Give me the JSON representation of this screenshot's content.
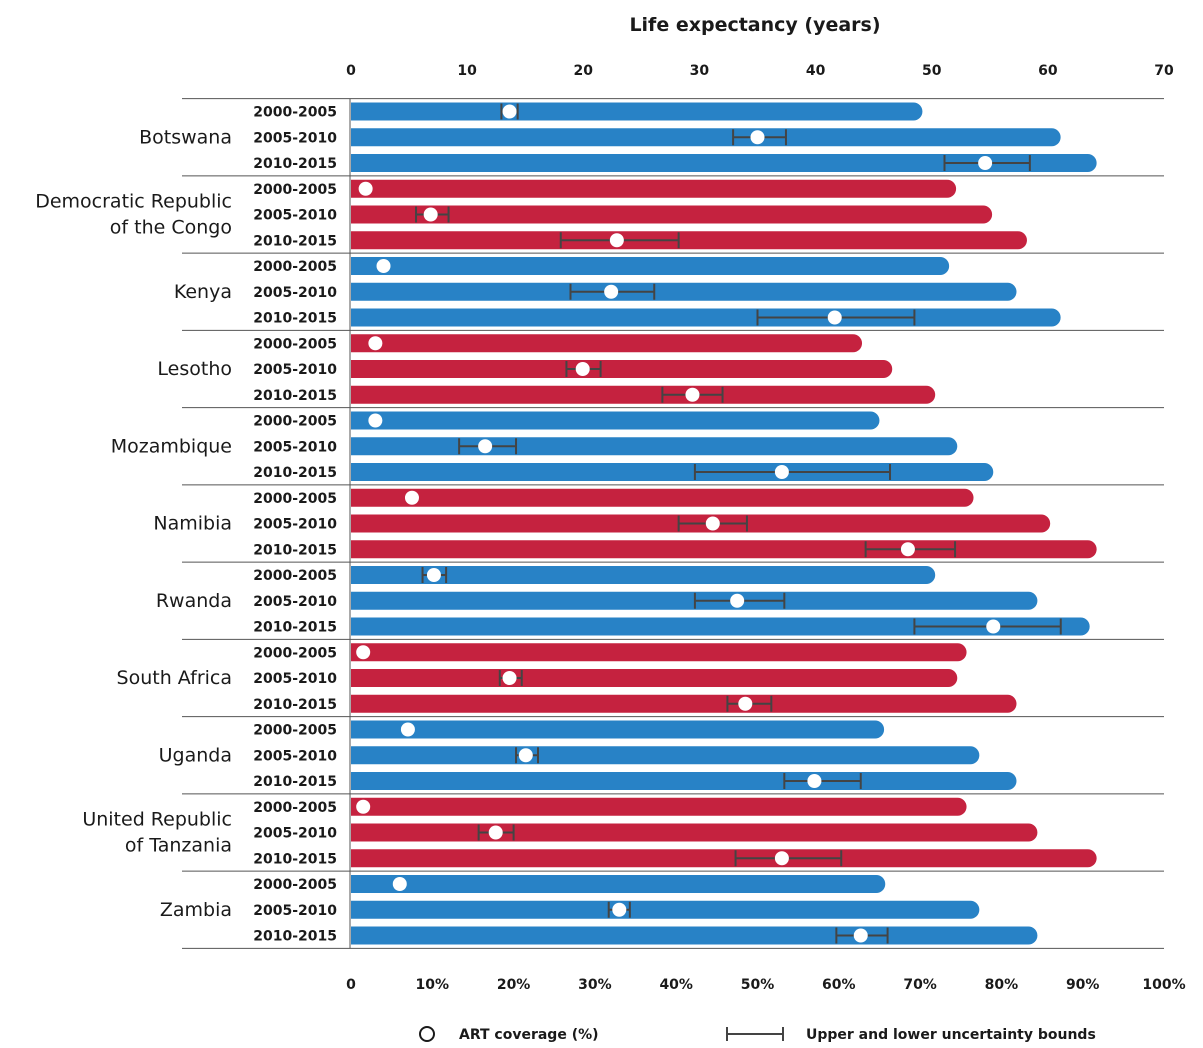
{
  "chart_data": {
    "type": "bar",
    "top_axis": {
      "label": "Life expectancy (years)",
      "range": [
        0,
        70
      ],
      "ticks": [
        "0",
        "10",
        "20",
        "30",
        "40",
        "50",
        "60",
        "70"
      ]
    },
    "bottom_axis": {
      "range": [
        0,
        100
      ],
      "ticks": [
        "0",
        "10%",
        "20%",
        "30%",
        "40%",
        "50%",
        "60%",
        "70%",
        "80%",
        "90%",
        "100%"
      ]
    },
    "periods": [
      "2000-2005",
      "2005-2010",
      "2010-2015"
    ],
    "colors": {
      "blue": "#2882c6",
      "red": "#c5223f",
      "errorbar": "#444444"
    },
    "countries": [
      {
        "name": "Botswana",
        "color": "blue",
        "life_expectancy": [
          49.2,
          61.1,
          64.2
        ],
        "art_coverage": [
          19.5,
          50,
          78
        ],
        "art_lower": [
          18.5,
          47,
          73
        ],
        "art_upper": [
          20.5,
          53.5,
          83.5
        ]
      },
      {
        "name": "Democratic Republic of the Congo",
        "color": "red",
        "life_expectancy": [
          52.1,
          55.2,
          58.2
        ],
        "art_coverage": [
          1.8,
          9.8,
          32.7
        ],
        "art_lower": null,
        "art_upper": null,
        "bounds": [
          [
            null,
            null
          ],
          [
            8.0,
            12.0
          ],
          [
            25.8,
            40.3
          ]
        ]
      },
      {
        "name": "Kenya",
        "color": "blue",
        "life_expectancy": [
          51.5,
          57.3,
          61.1
        ],
        "art_coverage": [
          4,
          32,
          59.5
        ],
        "bounds": [
          [
            null,
            null
          ],
          [
            27.0,
            37.3
          ],
          [
            50.0,
            69.3
          ]
        ]
      },
      {
        "name": "Lesotho",
        "color": "red",
        "life_expectancy": [
          44.0,
          46.6,
          50.3
        ],
        "art_coverage": [
          3,
          28.5,
          42
        ],
        "bounds": [
          [
            null,
            null
          ],
          [
            26.5,
            30.7
          ],
          [
            38.3,
            45.7
          ]
        ]
      },
      {
        "name": "Mozambique",
        "color": "blue",
        "life_expectancy": [
          45.5,
          52.2,
          55.3
        ],
        "art_coverage": [
          3,
          16.5,
          53
        ],
        "bounds": [
          [
            null,
            null
          ],
          [
            13.3,
            20.3
          ],
          [
            42.3,
            66.3
          ]
        ]
      },
      {
        "name": "Namibia",
        "color": "red",
        "life_expectancy": [
          53.6,
          60.2,
          64.2
        ],
        "art_coverage": [
          7.5,
          44.5,
          68.5
        ],
        "bounds": [
          [
            null,
            null
          ],
          [
            40.3,
            48.7
          ],
          [
            63.3,
            74.3
          ]
        ]
      },
      {
        "name": "Rwanda",
        "color": "blue",
        "life_expectancy": [
          50.3,
          59.1,
          63.6
        ],
        "art_coverage": [
          10.2,
          47.5,
          79
        ],
        "bounds": [
          [
            8.8,
            11.7
          ],
          [
            42.3,
            53.3
          ],
          [
            69.3,
            87.3
          ]
        ]
      },
      {
        "name": "South Africa",
        "color": "red",
        "life_expectancy": [
          53.0,
          52.2,
          57.3
        ],
        "art_coverage": [
          1.5,
          19.5,
          48.5
        ],
        "bounds": [
          [
            null,
            null
          ],
          [
            18.3,
            21.0
          ],
          [
            46.3,
            51.7
          ]
        ]
      },
      {
        "name": "Uganda",
        "color": "blue",
        "life_expectancy": [
          45.9,
          54.1,
          57.3
        ],
        "art_coverage": [
          7,
          21.5,
          57
        ],
        "bounds": [
          [
            null,
            null
          ],
          [
            20.3,
            23.0
          ],
          [
            53.3,
            62.7
          ]
        ]
      },
      {
        "name": "United Republic of Tanzania",
        "color": "red",
        "life_expectancy": [
          53.0,
          59.1,
          64.2
        ],
        "art_coverage": [
          1.5,
          17.8,
          53
        ],
        "bounds": [
          [
            null,
            null
          ],
          [
            15.7,
            20.0
          ],
          [
            47.3,
            60.3
          ]
        ]
      },
      {
        "name": "Zambia",
        "color": "blue",
        "life_expectancy": [
          46.0,
          54.1,
          59.1
        ],
        "art_coverage": [
          6,
          33,
          62.7
        ],
        "bounds": [
          [
            null,
            null
          ],
          [
            31.7,
            34.3
          ],
          [
            59.7,
            66.0
          ]
        ]
      }
    ]
  },
  "legend": {
    "marker_label": "ART coverage (%)",
    "bounds_label": "Upper and lower uncertainty bounds"
  }
}
